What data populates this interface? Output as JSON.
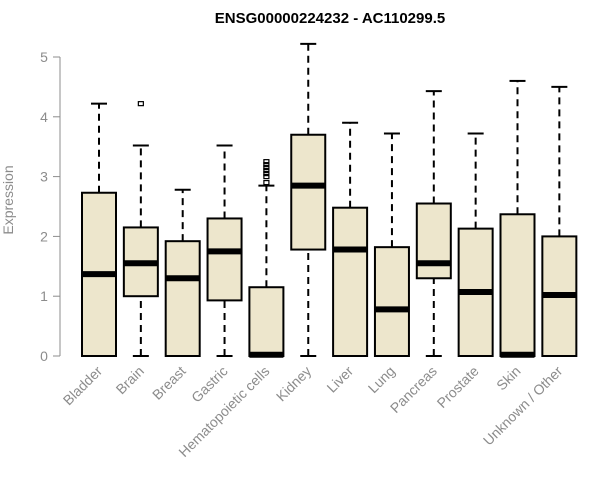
{
  "chart_data": {
    "type": "boxplot",
    "title": "ENSG00000224232 - AC110299.5",
    "xlabel": "",
    "ylabel": "Expression",
    "ylim": [
      0,
      5.3
    ],
    "yticks": [
      0,
      1,
      2,
      3,
      4,
      5
    ],
    "grid": false,
    "box_color": "#EDE6CC",
    "categories": [
      "Bladder",
      "Brain",
      "Breast",
      "Gastric",
      "Hematopoietic cells",
      "Kidney",
      "Liver",
      "Lung",
      "Pancreas",
      "Prostate",
      "Skin",
      "Unknown / Other"
    ],
    "boxes": [
      {
        "category": "Bladder",
        "min": 0,
        "q1": 0,
        "median": 1.37,
        "q3": 2.73,
        "max": 4.22,
        "outliers": []
      },
      {
        "category": "Brain",
        "min": 0,
        "q1": 1.0,
        "median": 1.55,
        "q3": 2.15,
        "max": 3.52,
        "outliers": [
          4.22
        ]
      },
      {
        "category": "Breast",
        "min": 0,
        "q1": 0,
        "median": 1.3,
        "q3": 1.92,
        "max": 2.78,
        "outliers": []
      },
      {
        "category": "Gastric",
        "min": 0,
        "q1": 0.93,
        "median": 1.75,
        "q3": 2.3,
        "max": 3.52,
        "outliers": []
      },
      {
        "category": "Hematopoietic cells",
        "min": 0,
        "q1": 0,
        "median": 0.02,
        "q3": 1.15,
        "max": 2.85,
        "outliers": [
          2.9,
          3.0,
          3.05,
          3.1,
          3.15,
          3.2,
          3.25
        ]
      },
      {
        "category": "Kidney",
        "min": 0,
        "q1": 1.78,
        "median": 2.85,
        "q3": 3.7,
        "max": 5.22,
        "outliers": []
      },
      {
        "category": "Liver",
        "min": 0,
        "q1": 0,
        "median": 1.78,
        "q3": 2.48,
        "max": 3.9,
        "outliers": []
      },
      {
        "category": "Lung",
        "min": 0,
        "q1": 0,
        "median": 0.78,
        "q3": 1.82,
        "max": 3.72,
        "outliers": []
      },
      {
        "category": "Pancreas",
        "min": 0,
        "q1": 1.3,
        "median": 1.55,
        "q3": 2.55,
        "max": 4.43,
        "outliers": []
      },
      {
        "category": "Prostate",
        "min": 0,
        "q1": 0,
        "median": 1.07,
        "q3": 2.13,
        "max": 3.72,
        "outliers": []
      },
      {
        "category": "Skin",
        "min": 0,
        "q1": 0,
        "median": 0.02,
        "q3": 2.37,
        "max": 4.6,
        "outliers": []
      },
      {
        "category": "Unknown / Other",
        "min": 0,
        "q1": 0,
        "median": 1.02,
        "q3": 2.0,
        "max": 4.5,
        "outliers": []
      }
    ]
  }
}
